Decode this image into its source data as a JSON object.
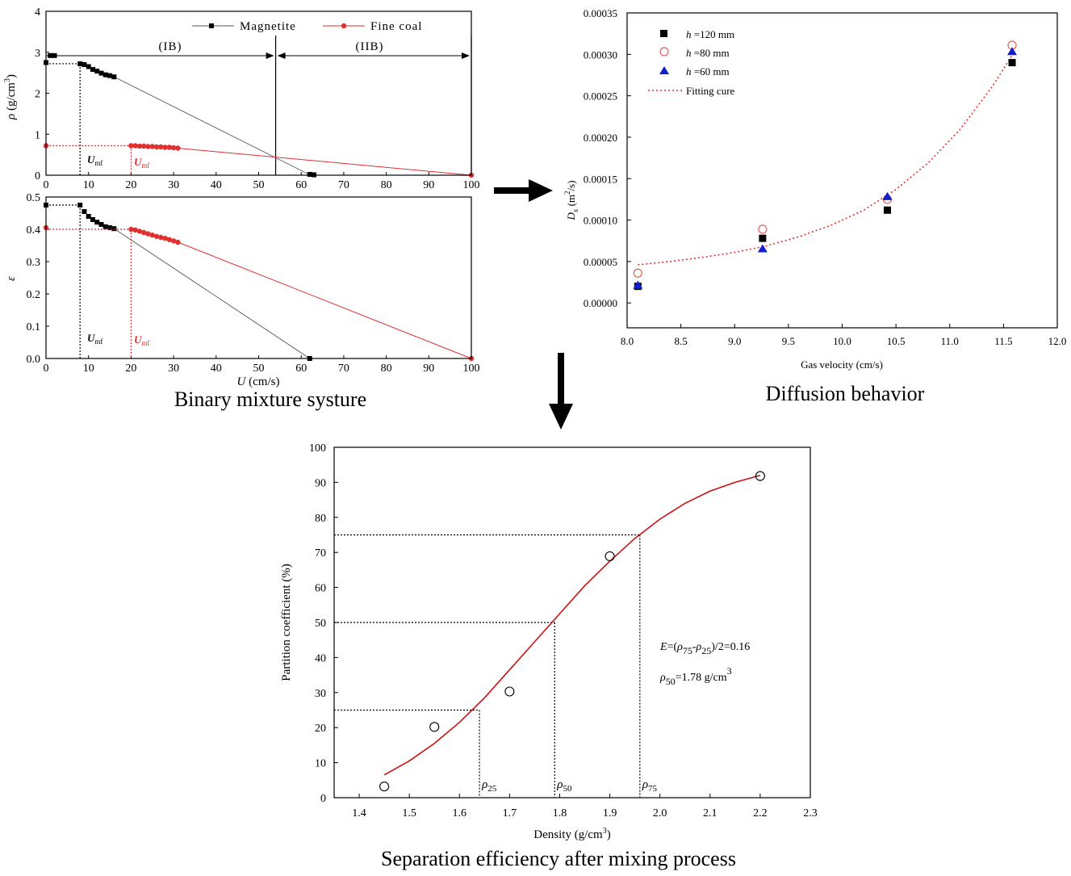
{
  "captions": {
    "top_left": "Binary mixture systure",
    "top_right": "Diffusion behavior",
    "bottom": "Separation efficiency after mixing process"
  },
  "colors": {
    "magnetite": "#000000",
    "fine_coal": "#e03030",
    "h120": "#000000",
    "h80": "#e06060",
    "h60": "#1020d0",
    "fit": "#e03030",
    "curve": "#cc1010"
  },
  "chart_data": [
    {
      "id": "density",
      "type": "line",
      "title": "",
      "xlabel": "",
      "ylabel_symbol": "ρ",
      "ylabel_unit": "(g/cm",
      "ylabel_sup": "3",
      "ylabel_close": ")",
      "xlim": [
        0,
        100
      ],
      "ylim": [
        0,
        4
      ],
      "xticks": [
        0,
        10,
        20,
        30,
        40,
        50,
        60,
        70,
        80,
        90,
        100
      ],
      "yticks": [
        0,
        1,
        2,
        3,
        4
      ],
      "legend": {
        "position": "top-right",
        "items": [
          "Magnetite",
          "Fine coal"
        ]
      },
      "regions": [
        {
          "label": "(IB)",
          "from": 0,
          "to": 54
        },
        {
          "label": "(IIB)",
          "from": 54,
          "to": 100
        }
      ],
      "umf_label": "U",
      "umf_sub": "mf",
      "series": [
        {
          "name": "Magnetite",
          "x": [
            0,
            1,
            2,
            8,
            9,
            10,
            11,
            12,
            13,
            14,
            15,
            16,
            62,
            63
          ],
          "y": [
            2.75,
            2.92,
            2.92,
            2.72,
            2.7,
            2.65,
            2.58,
            2.54,
            2.49,
            2.45,
            2.43,
            2.4,
            0.02,
            0.01
          ],
          "umf": 8,
          "line": [
            [
              16,
              2.4
            ],
            [
              62,
              0.01
            ]
          ]
        },
        {
          "name": "Fine coal",
          "x": [
            0,
            20,
            21,
            22,
            23,
            24,
            25,
            26,
            27,
            28,
            29,
            30,
            31,
            100
          ],
          "y": [
            0.72,
            0.72,
            0.72,
            0.71,
            0.71,
            0.7,
            0.7,
            0.69,
            0.69,
            0.68,
            0.68,
            0.67,
            0.66,
            0.0
          ],
          "umf": 20,
          "line": [
            [
              31,
              0.66
            ],
            [
              100,
              0.0
            ]
          ]
        }
      ],
      "vlines": [
        54,
        100
      ]
    },
    {
      "id": "voidage",
      "type": "line",
      "title": "",
      "xlabel_symbol": "U",
      "xlabel_unit": "(cm/s)",
      "ylabel": "ε",
      "xlim": [
        0,
        100
      ],
      "ylim": [
        0,
        0.5
      ],
      "xticks": [
        0,
        10,
        20,
        30,
        40,
        50,
        60,
        70,
        80,
        90,
        100
      ],
      "yticks": [
        0.0,
        0.1,
        0.2,
        0.3,
        0.4,
        0.5
      ],
      "series": [
        {
          "name": "Magnetite",
          "x": [
            0,
            8,
            9,
            10,
            11,
            12,
            13,
            14,
            15,
            16,
            62
          ],
          "y": [
            0.475,
            0.475,
            0.455,
            0.44,
            0.43,
            0.422,
            0.415,
            0.408,
            0.405,
            0.402,
            0.0
          ],
          "umf": 8,
          "line": [
            [
              16,
              0.402
            ],
            [
              62,
              0.0
            ]
          ]
        },
        {
          "name": "Fine coal",
          "x": [
            0,
            20,
            21,
            22,
            23,
            24,
            25,
            26,
            27,
            28,
            29,
            30,
            31,
            100
          ],
          "y": [
            0.405,
            0.4,
            0.398,
            0.394,
            0.39,
            0.386,
            0.382,
            0.378,
            0.375,
            0.372,
            0.368,
            0.364,
            0.36,
            0.0
          ],
          "umf": 20,
          "line": [
            [
              31,
              0.36
            ],
            [
              100,
              0.0
            ]
          ]
        }
      ]
    },
    {
      "id": "diffusion",
      "type": "scatter",
      "title": "",
      "xlabel": "Gas velocity (cm/s)",
      "ylabel_symbol": "D",
      "ylabel_sub": "x",
      "ylabel_unit": "(m",
      "ylabel_sup": "2",
      "ylabel_close": "/s)",
      "xlim": [
        8.0,
        12.0
      ],
      "ylim": [
        -3e-05,
        0.00035
      ],
      "xticks": [
        "8.0",
        "8.5",
        "9.0",
        "9.5",
        "10.0",
        "10.5",
        "11.0",
        "11.5",
        "12.0"
      ],
      "yticks": [
        "0.00000",
        "0.00005",
        "0.00010",
        "0.00015",
        "0.00020",
        "0.00025",
        "0.00030",
        "0.00035"
      ],
      "legend": {
        "position": "top-left",
        "items": [
          {
            "sym": "h",
            "val": " =120 mm"
          },
          {
            "sym": "h",
            "val": " =80 mm"
          },
          {
            "sym": "h",
            "val": " =60 mm"
          },
          {
            "sym": "",
            "val": "Fitting cure"
          }
        ]
      },
      "series": [
        {
          "name": "h =120 mm",
          "marker": "square",
          "x": [
            8.1,
            9.26,
            10.42,
            11.58
          ],
          "y": [
            2e-05,
            7.8e-05,
            0.000112,
            0.00029
          ]
        },
        {
          "name": "h =80 mm",
          "marker": "circle",
          "x": [
            8.1,
            9.26,
            10.42,
            11.58
          ],
          "y": [
            3.6e-05,
            8.9e-05,
            0.000125,
            0.000311
          ]
        },
        {
          "name": "h =60 mm",
          "marker": "triangle",
          "x": [
            8.1,
            9.26,
            10.42,
            11.58
          ],
          "y": [
            2.1e-05,
            6.5e-05,
            0.000128,
            0.000303
          ]
        }
      ],
      "fit": {
        "name": "Fitting cure",
        "x": [
          8.1,
          8.4,
          8.7,
          9.0,
          9.3,
          9.6,
          9.9,
          10.2,
          10.5,
          10.8,
          11.1,
          11.4,
          11.6
        ],
        "y": [
          4.6e-05,
          5e-05,
          5.5e-05,
          6.1e-05,
          6.9e-05,
          8e-05,
          9.4e-05,
          0.000112,
          0.000137,
          0.000169,
          0.00021,
          0.000262,
          0.000303
        ]
      }
    },
    {
      "id": "partition",
      "type": "scatter",
      "title": "",
      "xlabel": "Density (g/cm",
      "xlabel_sup": "3",
      "xlabel_close": ")",
      "ylabel": "Partition coefficient (%)",
      "xlim": [
        1.35,
        2.3
      ],
      "ylim": [
        0,
        100
      ],
      "xticks": [
        "1.4",
        "1.5",
        "1.6",
        "1.7",
        "1.8",
        "1.9",
        "2.0",
        "2.1",
        "2.2",
        "2.3"
      ],
      "yticks": [
        "0",
        "10",
        "20",
        "30",
        "40",
        "50",
        "60",
        "70",
        "80",
        "90",
        "100"
      ],
      "points": {
        "x": [
          1.45,
          1.55,
          1.7,
          1.9,
          2.2
        ],
        "y": [
          3.2,
          20.2,
          30.3,
          68.9,
          91.8
        ]
      },
      "curve": {
        "x": [
          1.45,
          1.5,
          1.55,
          1.6,
          1.65,
          1.7,
          1.75,
          1.8,
          1.85,
          1.9,
          1.95,
          2.0,
          2.05,
          2.1,
          2.15,
          2.2
        ],
        "y": [
          6.5,
          10.5,
          15.5,
          21.5,
          28.5,
          36.5,
          44.5,
          52.5,
          60.5,
          67.5,
          74,
          79.5,
          84,
          87.5,
          90,
          92
        ]
      },
      "guides": [
        {
          "x": 1.64,
          "y": 25,
          "label": "ρ",
          "sub": "25"
        },
        {
          "x": 1.79,
          "y": 50,
          "label": "ρ",
          "sub": "50"
        },
        {
          "x": 1.96,
          "y": 75,
          "label": "ρ",
          "sub": "75"
        }
      ],
      "annotation": {
        "e_sym": "E",
        "e_mid1": "=(",
        "rho": "ρ",
        "s75": "75",
        "dash": "-",
        "s25": "25",
        "e_end": ")/2=0.16",
        "p50_sub": "50",
        "p50_val": "=1.78 g/cm",
        "p50_sup": "3"
      }
    }
  ]
}
